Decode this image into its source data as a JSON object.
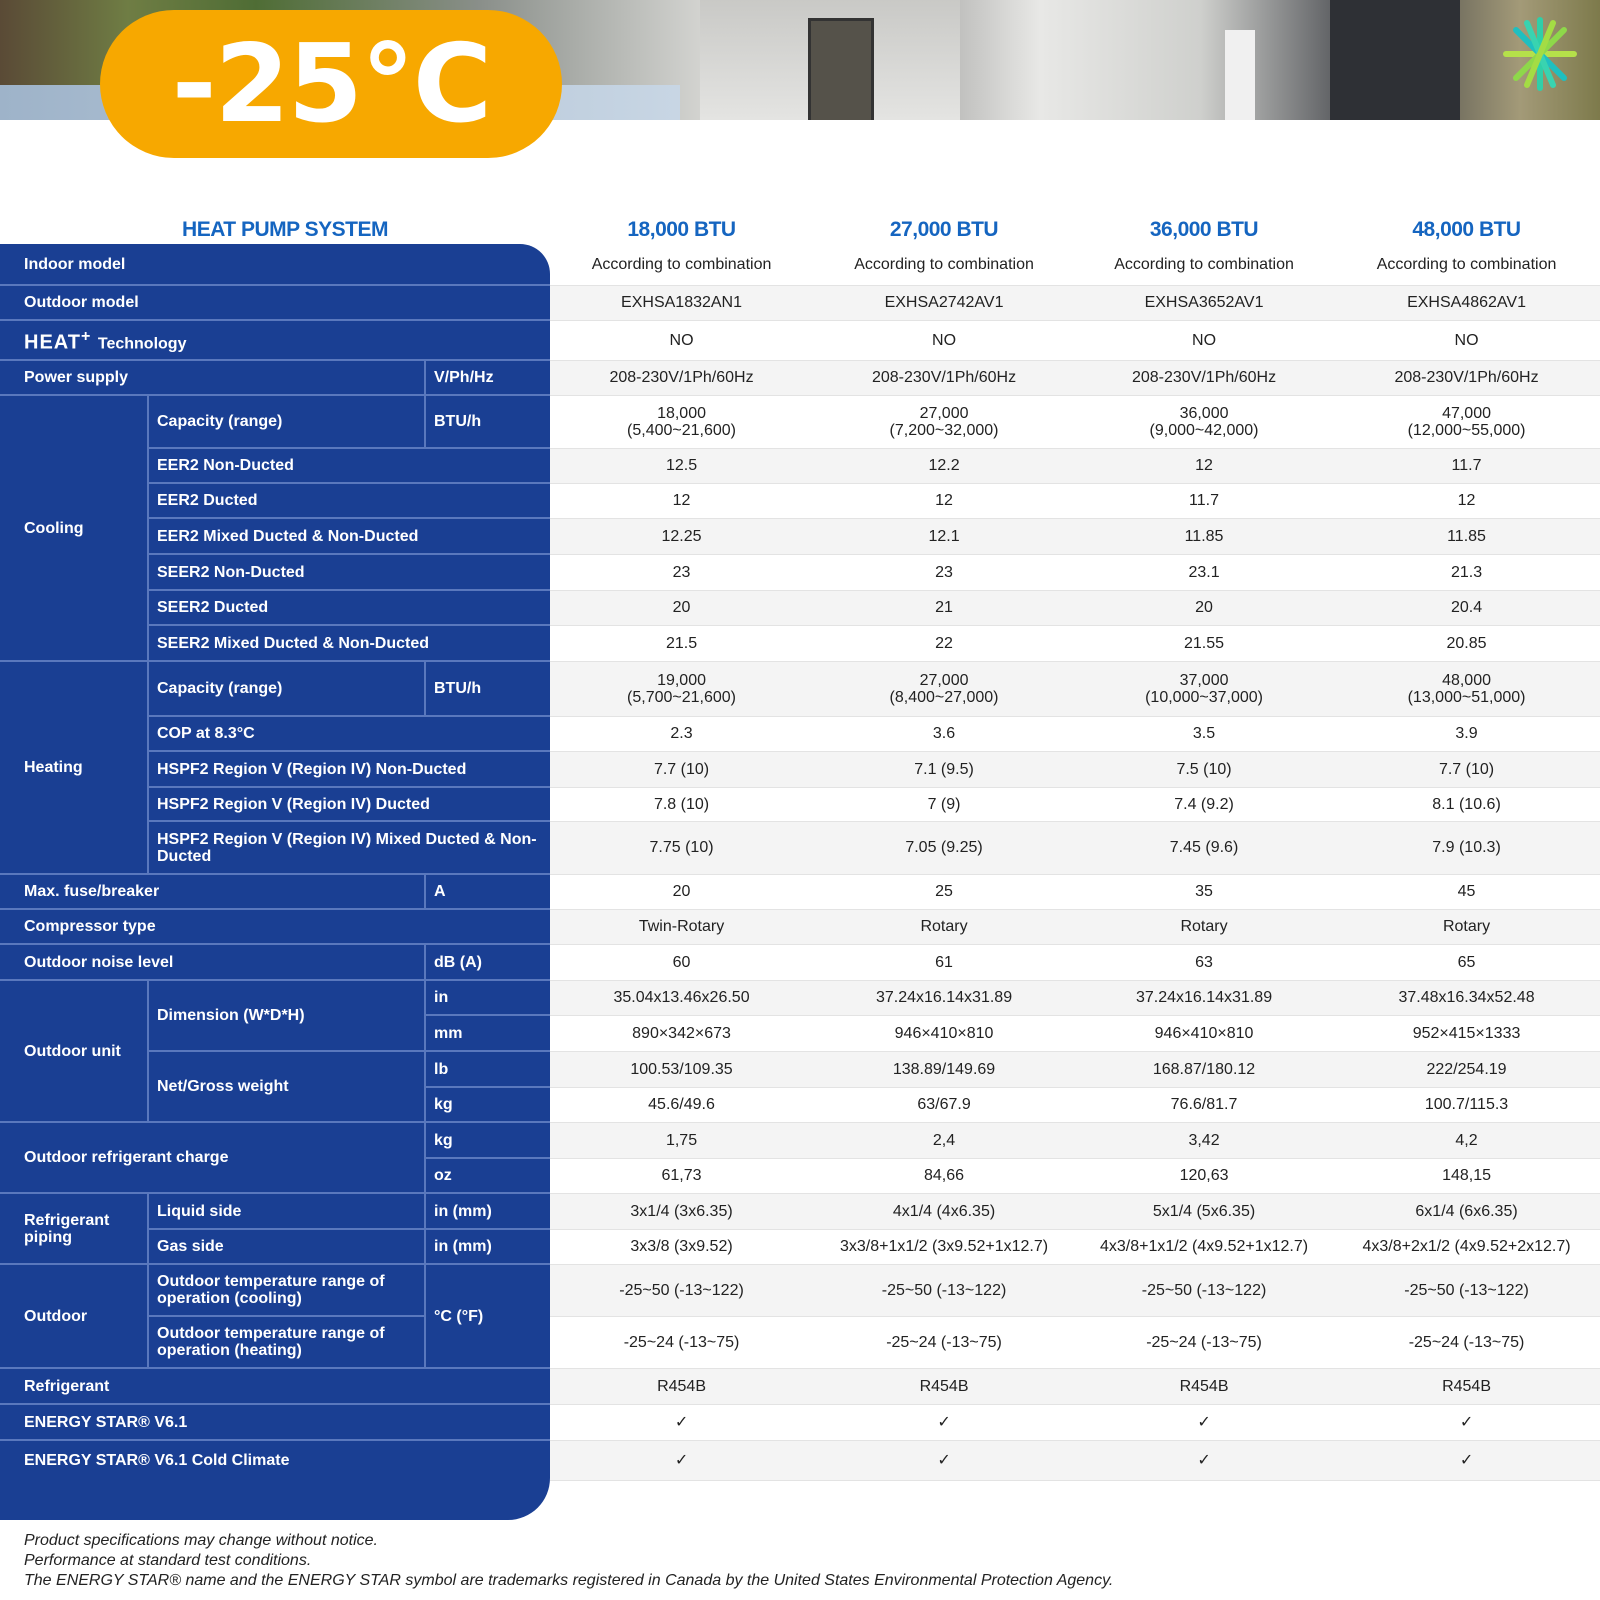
{
  "banner": {
    "temperature": "-25°C",
    "accent_color": "#f7a800",
    "logo_icon": "snowflake-logo"
  },
  "header": {
    "system": "HEAT PUMP SYSTEM",
    "columns": [
      "18,000 BTU",
      "27,000 BTU",
      "36,000 BTU",
      "48,000 BTU"
    ]
  },
  "colors": {
    "panel": "#1a3f93",
    "header_text": "#1565c0"
  },
  "table": {
    "rows": [
      {
        "label": "Indoor model",
        "values": [
          "According to combination",
          "According to combination",
          "According to combination",
          "According to combination"
        ]
      },
      {
        "label": "Outdoor model",
        "values": [
          "EXHSA1832AN1",
          "EXHSA2742AV1",
          "EXHSA3652AV1",
          "EXHSA4862AV1"
        ]
      },
      {
        "label": "HEAT",
        "label_sup": "+",
        "label_suffix": "Technology",
        "values": [
          "NO",
          "NO",
          "NO",
          "NO"
        ]
      },
      {
        "label": "Power supply",
        "unit": "V/Ph/Hz",
        "values": [
          "208-230V/1Ph/60Hz",
          "208-230V/1Ph/60Hz",
          "208-230V/1Ph/60Hz",
          "208-230V/1Ph/60Hz"
        ]
      },
      {
        "group": "Cooling",
        "items": [
          {
            "label": "Capacity (range)",
            "unit": "BTU/h",
            "values": [
              "18,000\n(5,400~21,600)",
              "27,000\n(7,200~32,000)",
              "36,000\n(9,000~42,000)",
              "47,000\n(12,000~55,000)"
            ]
          },
          {
            "label": "EER2 Non-Ducted",
            "values": [
              "12.5",
              "12.2",
              "12",
              "11.7"
            ]
          },
          {
            "label": "EER2 Ducted",
            "values": [
              "12",
              "12",
              "11.7",
              "12"
            ]
          },
          {
            "label": "EER2 Mixed Ducted & Non-Ducted",
            "values": [
              "12.25",
              "12.1",
              "11.85",
              "11.85"
            ]
          },
          {
            "label": "SEER2 Non-Ducted",
            "values": [
              "23",
              "23",
              "23.1",
              "21.3"
            ]
          },
          {
            "label": "SEER2 Ducted",
            "values": [
              "20",
              "21",
              "20",
              "20.4"
            ]
          },
          {
            "label": "SEER2 Mixed Ducted & Non-Ducted",
            "values": [
              "21.5",
              "22",
              "21.55",
              "20.85"
            ]
          }
        ]
      },
      {
        "group": "Heating",
        "items": [
          {
            "label": "Capacity (range)",
            "unit": "BTU/h",
            "values": [
              "19,000\n(5,700~21,600)",
              "27,000\n(8,400~27,000)",
              "37,000\n(10,000~37,000)",
              "48,000\n(13,000~51,000)"
            ]
          },
          {
            "label": "COP at 8.3°C",
            "values": [
              "2.3",
              "3.6",
              "3.5",
              "3.9"
            ]
          },
          {
            "label": "HSPF2 Region V (Region IV) Non-Ducted",
            "values": [
              "7.7 (10)",
              "7.1 (9.5)",
              "7.5 (10)",
              "7.7 (10)"
            ]
          },
          {
            "label": "HSPF2 Region V (Region IV) Ducted",
            "values": [
              "7.8 (10)",
              "7 (9)",
              "7.4 (9.2)",
              "8.1 (10.6)"
            ]
          },
          {
            "label": "HSPF2 Region V (Region IV) Mixed Ducted & Non-Ducted",
            "values": [
              "7.75 (10)",
              "7.05 (9.25)",
              "7.45 (9.6)",
              "7.9 (10.3)"
            ]
          }
        ]
      },
      {
        "label": "Max. fuse/breaker",
        "unit": "A",
        "values": [
          "20",
          "25",
          "35",
          "45"
        ]
      },
      {
        "label": "Compressor type",
        "values": [
          "Twin-Rotary",
          "Rotary",
          "Rotary",
          "Rotary"
        ]
      },
      {
        "label": "Outdoor noise level",
        "unit": "dB (A)",
        "values": [
          "60",
          "61",
          "63",
          "65"
        ]
      },
      {
        "group": "Outdoor unit",
        "items": [
          {
            "label": "Dimension (W*D*H)",
            "units": [
              {
                "unit": "in",
                "values": [
                  "35.04x13.46x26.50",
                  "37.24x16.14x31.89",
                  "37.24x16.14x31.89",
                  "37.48x16.34x52.48"
                ]
              },
              {
                "unit": "mm",
                "values": [
                  "890×342×673",
                  "946×410×810",
                  "946×410×810",
                  "952×415×1333"
                ]
              }
            ]
          },
          {
            "label": "Net/Gross weight",
            "units": [
              {
                "unit": "lb",
                "values": [
                  "100.53/109.35",
                  "138.89/149.69",
                  "168.87/180.12",
                  "222/254.19"
                ]
              },
              {
                "unit": "kg",
                "values": [
                  "45.6/49.6",
                  "63/67.9",
                  "76.6/81.7",
                  "100.7/115.3"
                ]
              }
            ]
          }
        ]
      },
      {
        "label": "Outdoor refrigerant charge",
        "units": [
          {
            "unit": "kg",
            "values": [
              "1,75",
              "2,4",
              "3,42",
              "4,2"
            ]
          },
          {
            "unit": "oz",
            "values": [
              "61,73",
              "84,66",
              "120,63",
              "148,15"
            ]
          }
        ]
      },
      {
        "group": "Refrigerant piping",
        "items": [
          {
            "label": "Liquid side",
            "unit": "in (mm)",
            "values": [
              "3x1/4 (3x6.35)",
              "4x1/4 (4x6.35)",
              "5x1/4 (5x6.35)",
              "6x1/4 (6x6.35)"
            ]
          },
          {
            "label": "Gas side",
            "unit": "in (mm)",
            "values": [
              "3x3/8 (3x9.52)",
              "3x3/8+1x1/2 (3x9.52+1x12.7)",
              "4x3/8+1x1/2 (4x9.52+1x12.7)",
              "4x3/8+2x1/2 (4x9.52+2x12.7)"
            ]
          }
        ]
      },
      {
        "group": "Outdoor",
        "unit": "°C (°F)",
        "items": [
          {
            "label": "Outdoor temperature range of operation (cooling)",
            "values": [
              "-25~50 (-13~122)",
              "-25~50 (-13~122)",
              "-25~50 (-13~122)",
              "-25~50 (-13~122)"
            ]
          },
          {
            "label": "Outdoor temperature range of operation (heating)",
            "values": [
              "-25~24 (-13~75)",
              "-25~24 (-13~75)",
              "-25~24 (-13~75)",
              "-25~24 (-13~75)"
            ]
          }
        ]
      },
      {
        "label": "Refrigerant",
        "values": [
          "R454B",
          "R454B",
          "R454B",
          "R454B"
        ]
      },
      {
        "label": "ENERGY STAR® V6.1",
        "values": [
          "✓",
          "✓",
          "✓",
          "✓"
        ]
      },
      {
        "label": "ENERGY STAR® V6.1 Cold Climate",
        "values": [
          "✓",
          "✓",
          "✓",
          "✓"
        ]
      }
    ]
  },
  "footer": [
    "Product specifications may change without notice.",
    "Performance at standard test conditions.",
    "The ENERGY STAR® name and the ENERGY STAR symbol are trademarks registered in Canada by the United States Environmental Protection Agency."
  ]
}
